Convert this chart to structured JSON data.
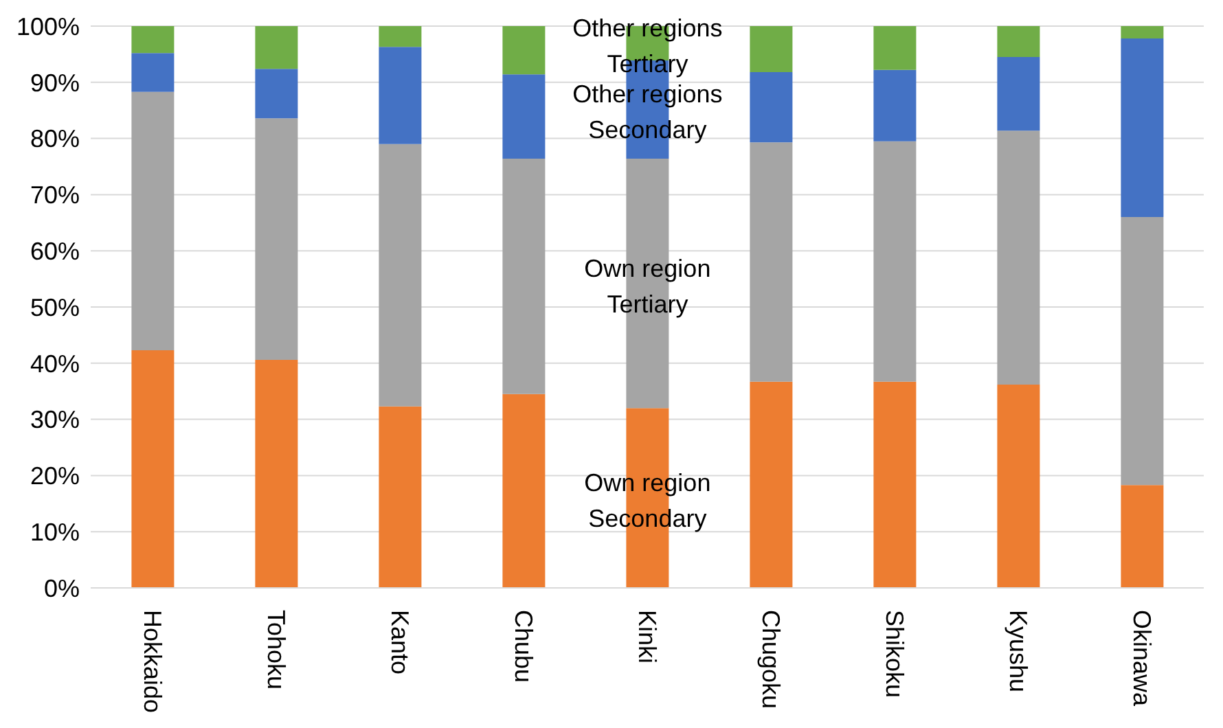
{
  "chart_data": {
    "type": "bar",
    "stacked": true,
    "categories": [
      "Hokkaido",
      "Tohoku",
      "Kanto",
      "Chubu",
      "Kinki",
      "Chugoku",
      "Shikoku",
      "Kyushu",
      "Okinawa"
    ],
    "series": [
      {
        "name": "Own region Secondary",
        "color": "#ed7d31",
        "values": [
          42.3,
          40.6,
          32.3,
          34.5,
          32.0,
          36.7,
          36.7,
          36.2,
          18.3
        ]
      },
      {
        "name": "Own region Tertiary",
        "color": "#a5a5a5",
        "values": [
          46.0,
          43.0,
          46.7,
          41.9,
          44.4,
          42.6,
          42.8,
          45.2,
          47.7
        ]
      },
      {
        "name": "Other regions Secondary",
        "color": "#4472c4",
        "values": [
          6.9,
          8.8,
          17.3,
          15.0,
          17.5,
          12.5,
          12.7,
          13.1,
          31.8
        ]
      },
      {
        "name": "Other regions Tertiary",
        "color": "#70ad47",
        "values": [
          4.8,
          7.6,
          3.7,
          8.6,
          6.1,
          8.2,
          7.8,
          5.5,
          2.2
        ]
      }
    ],
    "ylim": [
      0,
      100
    ],
    "yticks": [
      {
        "value": 0,
        "label": "0%"
      },
      {
        "value": 10,
        "label": "10%"
      },
      {
        "value": 20,
        "label": "20%"
      },
      {
        "value": 30,
        "label": "30%"
      },
      {
        "value": 40,
        "label": "40%"
      },
      {
        "value": 50,
        "label": "50%"
      },
      {
        "value": 60,
        "label": "60%"
      },
      {
        "value": 70,
        "label": "70%"
      },
      {
        "value": 80,
        "label": "80%"
      },
      {
        "value": 90,
        "label": "90%"
      },
      {
        "value": 100,
        "label": "100%"
      }
    ],
    "grid": "y",
    "legend": false
  }
}
